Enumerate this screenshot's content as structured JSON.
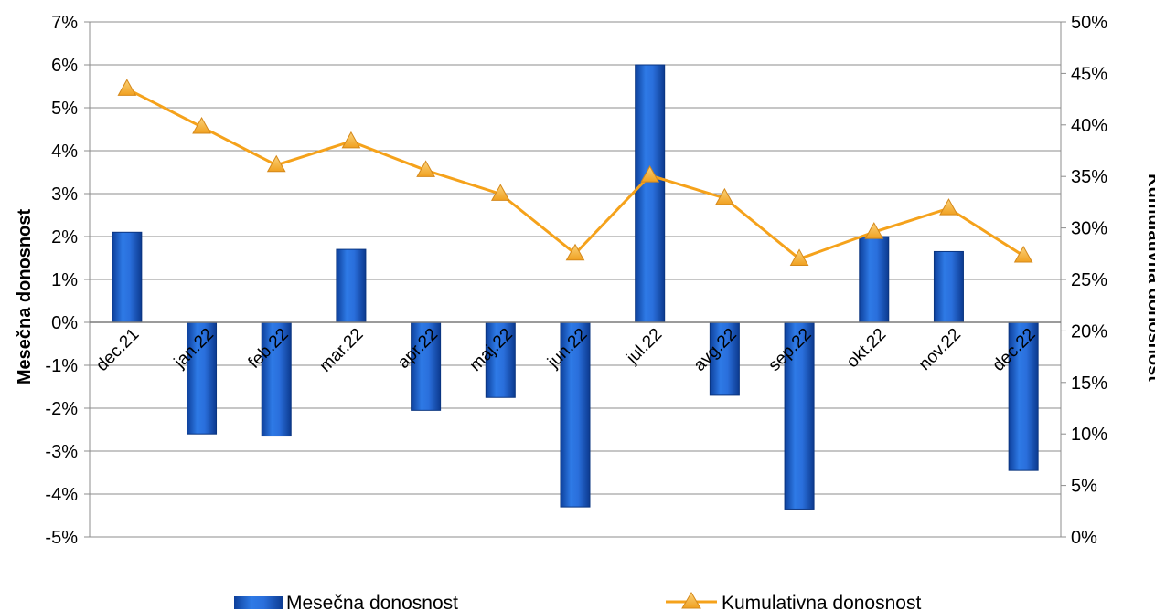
{
  "chart_data": {
    "type": "bar",
    "categories": [
      "dec.21",
      "jan.22",
      "feb.22",
      "mar.22",
      "apr.22",
      "maj.22",
      "jun.22",
      "jul.22",
      "avg.22",
      "sep.22",
      "okt.22",
      "nov.22",
      "dec.22"
    ],
    "series": [
      {
        "name": "Mesečna donosnost",
        "type": "bar",
        "axis": "left",
        "color": "#1f5fc8",
        "values": [
          2.1,
          -2.6,
          -2.65,
          1.7,
          -2.05,
          -1.75,
          -4.3,
          6.0,
          -1.7,
          -4.35,
          2.0,
          1.65,
          -3.45
        ]
      },
      {
        "name": "Kumulativna donosnost",
        "type": "line",
        "axis": "right",
        "color": "#f5a21b",
        "marker": "triangle",
        "values": [
          43.5,
          39.8,
          36.1,
          38.4,
          35.6,
          33.3,
          27.5,
          35.1,
          32.9,
          27.0,
          29.6,
          31.9,
          27.3
        ]
      }
    ],
    "ylabel": "Mesečna donosnost",
    "y2label": "Kumulativna donosnost",
    "ylim": [
      -5,
      7
    ],
    "y2lim": [
      0,
      50
    ],
    "yticks": [
      "-5%",
      "-4%",
      "-3%",
      "-2%",
      "-1%",
      "0%",
      "1%",
      "2%",
      "3%",
      "4%",
      "5%",
      "6%",
      "7%"
    ],
    "y2ticks": [
      "0%",
      "5%",
      "10%",
      "15%",
      "20%",
      "25%",
      "30%",
      "35%",
      "40%",
      "45%",
      "50%"
    ],
    "grid": true,
    "legend": "bottom"
  }
}
